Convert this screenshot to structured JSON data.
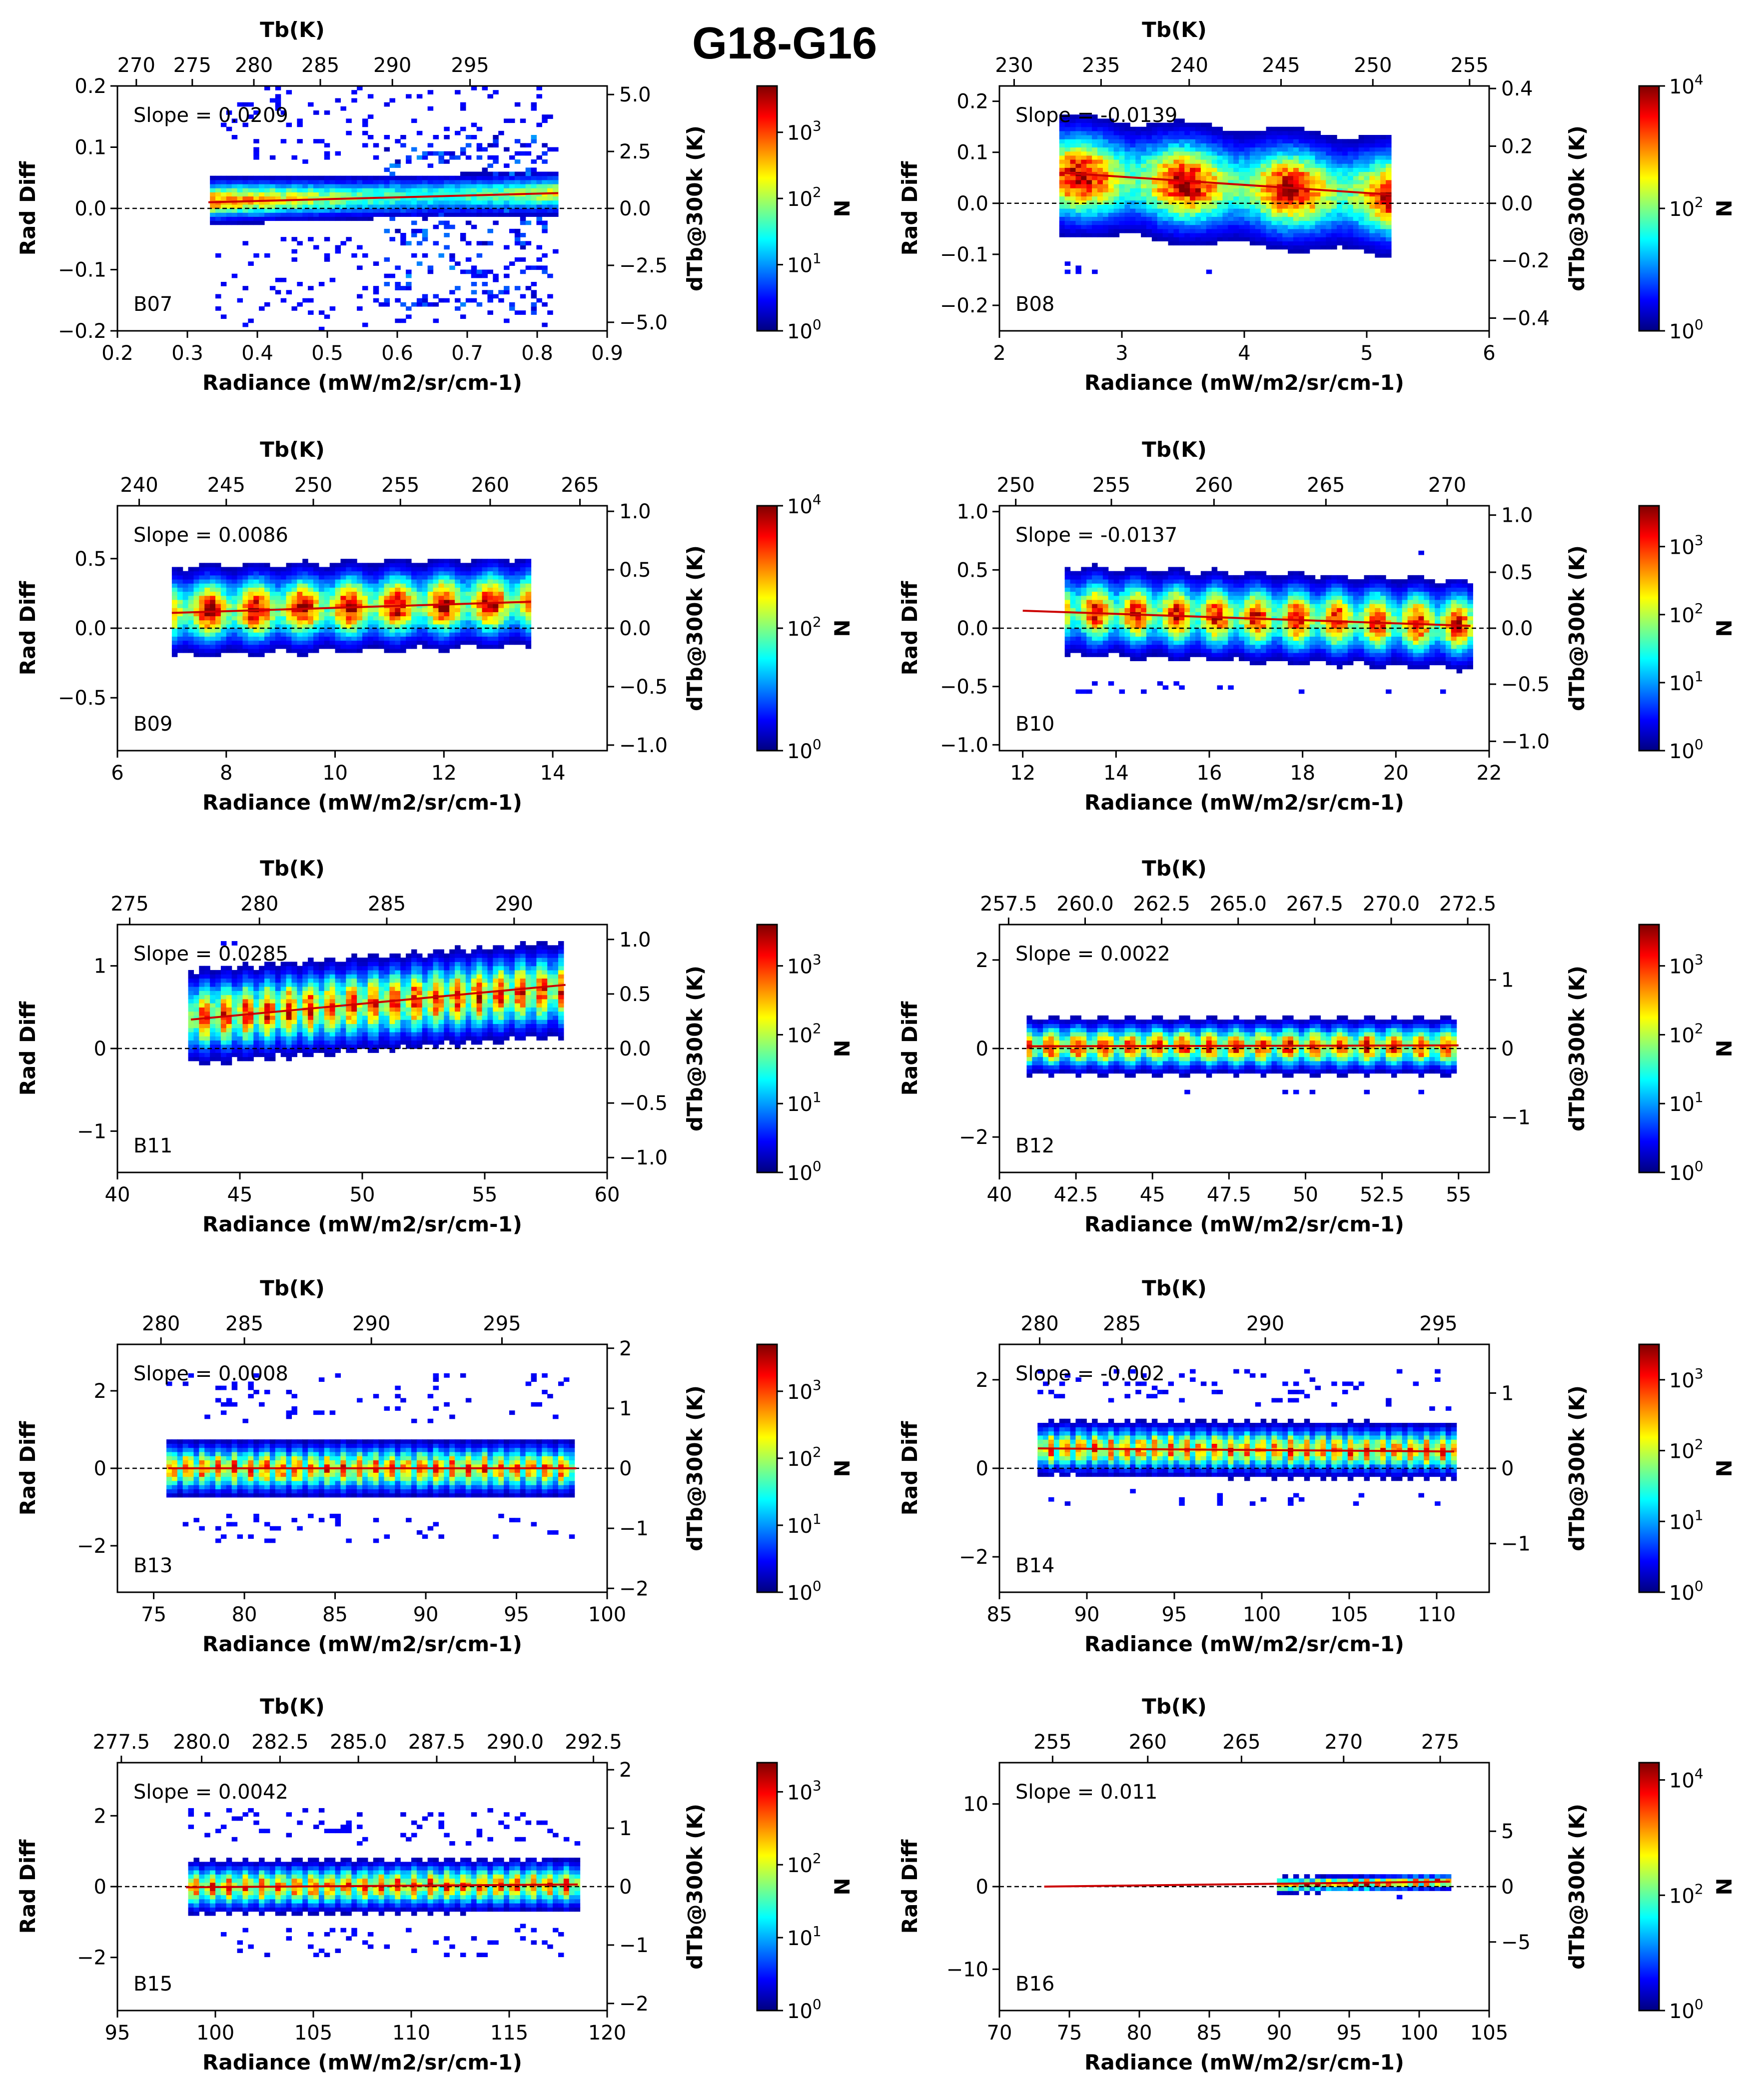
{
  "figure_title": "G18-G16",
  "colormap": [
    "#00007f",
    "#0000ff",
    "#0080ff",
    "#00ffff",
    "#80ff80",
    "#ffff00",
    "#ff8000",
    "#ff0000",
    "#7f0000"
  ],
  "fit_line_color": "#cc0000",
  "chart_data": [
    {
      "type": "heatmap",
      "band": "B07",
      "slope_text": "Slope = 0.0209",
      "title": "",
      "xlabel": "Radiance (mW/m2/sr/cm-1)",
      "ylabel": "Rad Diff",
      "top_xlabel": "Tb(K)",
      "right_ylabel": "dTb@300k (K)",
      "colorbar_label": "N",
      "xlim": [
        0.2,
        0.9
      ],
      "ylim": [
        -0.2,
        0.2
      ],
      "xticks": [
        0.2,
        0.3,
        0.4,
        0.5,
        0.6,
        0.7,
        0.8,
        0.9
      ],
      "yticks": [
        -0.2,
        -0.1,
        0.0,
        0.1,
        0.2
      ],
      "top_ticks": [
        {
          "label": "270",
          "x": 0.227
        },
        {
          "label": "275",
          "x": 0.307
        },
        {
          "label": "280",
          "x": 0.395
        },
        {
          "label": "285",
          "x": 0.49
        },
        {
          "label": "290",
          "x": 0.593
        },
        {
          "label": "295",
          "x": 0.704
        }
      ],
      "right_ticks": [
        {
          "label": "−5.0",
          "y": -0.186
        },
        {
          "label": "−2.5",
          "y": -0.093
        },
        {
          "label": "0.0",
          "y": 0.0
        },
        {
          "label": "2.5",
          "y": 0.093
        },
        {
          "label": "5.0",
          "y": 0.186
        }
      ],
      "colorbar_ticks": [
        "10^0",
        "10^1",
        "10^2",
        "10^3"
      ],
      "colorbar_max_exp": 3.7,
      "data_x": [
        0.33,
        0.83
      ],
      "data_y": [
        -0.2,
        0.2
      ],
      "center_y": [
        0.013,
        0.025
      ],
      "spread": 0.03,
      "center_density": 0.85,
      "fit_line": [
        [
          0.33,
          0.01
        ],
        [
          0.83,
          0.025
        ]
      ],
      "extra_regions": [
        {
          "x": [
            0.58,
            0.82
          ],
          "y": [
            -0.17,
            0.12
          ],
          "density": 0.25
        }
      ]
    },
    {
      "type": "heatmap",
      "band": "B08",
      "slope_text": "Slope = -0.0139",
      "title": "",
      "xlabel": "Radiance (mW/m2/sr/cm-1)",
      "ylabel": "Rad Diff",
      "top_xlabel": "Tb(K)",
      "right_ylabel": "dTb@300k (K)",
      "colorbar_label": "N",
      "xlim": [
        2,
        6
      ],
      "ylim": [
        -0.25,
        0.23
      ],
      "xticks": [
        2,
        3,
        4,
        5,
        6
      ],
      "yticks": [
        -0.2,
        -0.1,
        0.0,
        0.1,
        0.2
      ],
      "top_ticks": [
        {
          "label": "230",
          "x": 2.12
        },
        {
          "label": "235",
          "x": 2.83
        },
        {
          "label": "240",
          "x": 3.55
        },
        {
          "label": "245",
          "x": 4.3
        },
        {
          "label": "250",
          "x": 5.05
        },
        {
          "label": "255",
          "x": 5.84
        }
      ],
      "right_ticks": [
        {
          "label": "−0.4",
          "y": -0.225
        },
        {
          "label": "−0.2",
          "y": -0.112
        },
        {
          "label": "0.0",
          "y": 0.0
        },
        {
          "label": "0.2",
          "y": 0.112
        },
        {
          "label": "0.4",
          "y": 0.225
        }
      ],
      "colorbar_ticks": [
        "10^0",
        "10^2",
        "10^4"
      ],
      "colorbar_max_exp": 4,
      "data_x": [
        2.5,
        5.2
      ],
      "data_y": [
        -0.14,
        0.17
      ],
      "center_y": [
        0.055,
        0.015
      ],
      "spread": 0.09,
      "center_density": 0.95,
      "fit_line": [
        [
          2.5,
          0.06
        ],
        [
          5.2,
          0.017
        ]
      ],
      "extra_regions": []
    },
    {
      "type": "heatmap",
      "band": "B09",
      "slope_text": "Slope = 0.0086",
      "title": "",
      "xlabel": "Radiance (mW/m2/sr/cm-1)",
      "ylabel": "Rad Diff",
      "top_xlabel": "Tb(K)",
      "right_ylabel": "dTb@300k (K)",
      "colorbar_label": "N",
      "xlim": [
        6,
        15
      ],
      "ylim": [
        -0.88,
        0.88
      ],
      "xticks": [
        6,
        8,
        10,
        12,
        14
      ],
      "yticks": [
        -0.5,
        0.0,
        0.5
      ],
      "top_ticks": [
        {
          "label": "240",
          "x": 6.4
        },
        {
          "label": "245",
          "x": 8.0
        },
        {
          "label": "250",
          "x": 9.6
        },
        {
          "label": "255",
          "x": 11.2
        },
        {
          "label": "260",
          "x": 12.85
        },
        {
          "label": "265",
          "x": 14.5
        }
      ],
      "right_ticks": [
        {
          "label": "−1.0",
          "y": -0.84
        },
        {
          "label": "−0.5",
          "y": -0.42
        },
        {
          "label": "0.0",
          "y": 0.0
        },
        {
          "label": "0.5",
          "y": 0.42
        },
        {
          "label": "1.0",
          "y": 0.84
        }
      ],
      "colorbar_ticks": [
        "10^0",
        "10^2",
        "10^4"
      ],
      "colorbar_max_exp": 4,
      "data_x": [
        7.0,
        13.6
      ],
      "data_y": [
        -0.25,
        0.5
      ],
      "center_y": [
        0.12,
        0.19
      ],
      "spread": 0.25,
      "center_density": 0.95,
      "fit_line": [
        [
          7.0,
          0.11
        ],
        [
          13.6,
          0.19
        ]
      ],
      "extra_regions": []
    },
    {
      "type": "heatmap",
      "band": "B10",
      "slope_text": "Slope = -0.0137",
      "title": "",
      "xlabel": "Radiance (mW/m2/sr/cm-1)",
      "ylabel": "Rad Diff",
      "top_xlabel": "Tb(K)",
      "right_ylabel": "dTb@300k (K)",
      "colorbar_label": "N",
      "xlim": [
        11.5,
        22
      ],
      "ylim": [
        -1.05,
        1.05
      ],
      "xticks": [
        12,
        14,
        16,
        18,
        20,
        22
      ],
      "yticks": [
        -1.0,
        -0.5,
        0.0,
        0.5,
        1.0
      ],
      "top_ticks": [
        {
          "label": "250",
          "x": 11.85
        },
        {
          "label": "255",
          "x": 13.9
        },
        {
          "label": "260",
          "x": 16.1
        },
        {
          "label": "265",
          "x": 18.5
        },
        {
          "label": "270",
          "x": 21.1
        }
      ],
      "right_ticks": [
        {
          "label": "−1.0",
          "y": -0.97
        },
        {
          "label": "−0.5",
          "y": -0.48
        },
        {
          "label": "0.0",
          "y": 0.0
        },
        {
          "label": "0.5",
          "y": 0.48
        },
        {
          "label": "1.0",
          "y": 0.97
        }
      ],
      "colorbar_ticks": [
        "10^0",
        "10^1",
        "10^2",
        "10^3"
      ],
      "colorbar_max_exp": 3.6,
      "data_x": [
        12.9,
        21.6
      ],
      "data_y": [
        -0.55,
        0.65
      ],
      "center_y": [
        0.15,
        0.03
      ],
      "spread": 0.3,
      "center_density": 0.9,
      "fit_line": [
        [
          12.0,
          0.15
        ],
        [
          21.6,
          0.02
        ]
      ],
      "extra_regions": []
    },
    {
      "type": "heatmap",
      "band": "B11",
      "slope_text": "Slope = 0.0285",
      "title": "",
      "xlabel": "Radiance (mW/m2/sr/cm-1)",
      "ylabel": "Rad Diff",
      "top_xlabel": "Tb(K)",
      "right_ylabel": "dTb@300k (K)",
      "colorbar_label": "N",
      "xlim": [
        40,
        60
      ],
      "ylim": [
        -1.5,
        1.5
      ],
      "xticks": [
        40,
        45,
        50,
        55,
        60
      ],
      "yticks": [
        -1,
        0,
        1
      ],
      "top_ticks": [
        {
          "label": "275",
          "x": 40.5
        },
        {
          "label": "280",
          "x": 45.8
        },
        {
          "label": "285",
          "x": 51.0
        },
        {
          "label": "290",
          "x": 56.2
        }
      ],
      "right_ticks": [
        {
          "label": "−1.0",
          "y": -1.32
        },
        {
          "label": "−0.5",
          "y": -0.66
        },
        {
          "label": "0.0",
          "y": 0.0
        },
        {
          "label": "0.5",
          "y": 0.66
        },
        {
          "label": "1.0",
          "y": 1.32
        }
      ],
      "colorbar_ticks": [
        "10^0",
        "10^1",
        "10^2",
        "10^3"
      ],
      "colorbar_max_exp": 3.6,
      "data_x": [
        43.0,
        58.3
      ],
      "data_y": [
        -0.2,
        1.35
      ],
      "center_y": [
        0.38,
        0.72
      ],
      "spread": 0.45,
      "center_density": 0.9,
      "fit_line": [
        [
          43.0,
          0.35
        ],
        [
          58.3,
          0.77
        ]
      ],
      "extra_regions": []
    },
    {
      "type": "heatmap",
      "band": "B12",
      "slope_text": "Slope = 0.0022",
      "title": "",
      "xlabel": "Radiance (mW/m2/sr/cm-1)",
      "ylabel": "Rad Diff",
      "top_xlabel": "Tb(K)",
      "right_ylabel": "dTb@300k (K)",
      "colorbar_label": "N",
      "xlim": [
        40,
        56
      ],
      "ylim": [
        -2.8,
        2.8
      ],
      "xticks": [
        40.0,
        42.5,
        45.0,
        47.5,
        50.0,
        52.5,
        55.0
      ],
      "yticks": [
        -2,
        0,
        2
      ],
      "top_ticks": [
        {
          "label": "257.5",
          "x": 40.3
        },
        {
          "label": "260.0",
          "x": 42.8
        },
        {
          "label": "262.5",
          "x": 45.3
        },
        {
          "label": "265.0",
          "x": 47.8
        },
        {
          "label": "267.5",
          "x": 50.3
        },
        {
          "label": "270.0",
          "x": 52.8
        },
        {
          "label": "272.5",
          "x": 55.3
        }
      ],
      "right_ticks": [
        {
          "label": "−1",
          "y": -1.55
        },
        {
          "label": "0",
          "y": 0.0
        },
        {
          "label": "1",
          "y": 1.55
        }
      ],
      "colorbar_ticks": [
        "10^0",
        "10^1",
        "10^2",
        "10^3"
      ],
      "colorbar_max_exp": 3.6,
      "data_x": [
        40.9,
        55.0
      ],
      "data_y": [
        -1.0,
        1.0
      ],
      "center_y": [
        0.05,
        0.05
      ],
      "spread": 0.5,
      "center_density": 0.9,
      "fit_line": [
        [
          40.9,
          0.05
        ],
        [
          55.0,
          0.07
        ]
      ],
      "extra_regions": []
    },
    {
      "type": "heatmap",
      "band": "B13",
      "slope_text": "Slope = 0.0008",
      "title": "",
      "xlabel": "Radiance (mW/m2/sr/cm-1)",
      "ylabel": "Rad Diff",
      "top_xlabel": "Tb(K)",
      "right_ylabel": "dTb@300k (K)",
      "colorbar_label": "N",
      "xlim": [
        73,
        100
      ],
      "ylim": [
        -3.2,
        3.2
      ],
      "xticks": [
        75,
        80,
        85,
        90,
        95,
        100
      ],
      "yticks": [
        -2,
        0,
        2
      ],
      "top_ticks": [
        {
          "label": "280",
          "x": 75.4
        },
        {
          "label": "285",
          "x": 80.0
        },
        {
          "label": "290",
          "x": 87.0
        },
        {
          "label": "295",
          "x": 94.2
        }
      ],
      "right_ticks": [
        {
          "label": "−2",
          "y": -3.1
        },
        {
          "label": "−1",
          "y": -1.55
        },
        {
          "label": "0",
          "y": 0.0
        },
        {
          "label": "1",
          "y": 1.55
        },
        {
          "label": "2",
          "y": 3.1
        }
      ],
      "colorbar_ticks": [
        "10^0",
        "10^1",
        "10^2",
        "10^3"
      ],
      "colorbar_max_exp": 3.7,
      "data_x": [
        75.8,
        98.3
      ],
      "data_y": [
        -1.9,
        2.5
      ],
      "center_y": [
        0.0,
        0.0
      ],
      "spread": 0.6,
      "center_density": 0.85,
      "fit_line": [
        [
          75.8,
          0.0
        ],
        [
          98.3,
          0.0
        ]
      ],
      "extra_regions": []
    },
    {
      "type": "heatmap",
      "band": "B14",
      "slope_text": "Slope = -0.002",
      "title": "",
      "xlabel": "Radiance (mW/m2/sr/cm-1)",
      "ylabel": "Rad Diff",
      "top_xlabel": "Tb(K)",
      "right_ylabel": "dTb@300k (K)",
      "colorbar_label": "N",
      "xlim": [
        85,
        113
      ],
      "ylim": [
        -2.8,
        2.8
      ],
      "xticks": [
        85,
        90,
        95,
        100,
        105,
        110
      ],
      "yticks": [
        -2,
        0,
        2
      ],
      "top_ticks": [
        {
          "label": "280",
          "x": 87.3
        },
        {
          "label": "285",
          "x": 92.0
        },
        {
          "label": "290",
          "x": 100.2
        },
        {
          "label": "295",
          "x": 110.1
        }
      ],
      "right_ticks": [
        {
          "label": "−1",
          "y": -1.7
        },
        {
          "label": "0",
          "y": 0.0
        },
        {
          "label": "1",
          "y": 1.7
        }
      ],
      "colorbar_ticks": [
        "10^0",
        "10^1",
        "10^2",
        "10^3"
      ],
      "colorbar_max_exp": 3.5,
      "data_x": [
        87.2,
        111.0
      ],
      "data_y": [
        -0.8,
        2.2
      ],
      "center_y": [
        0.45,
        0.4
      ],
      "spread": 0.5,
      "center_density": 0.85,
      "fit_line": [
        [
          87.2,
          0.45
        ],
        [
          111.0,
          0.38
        ]
      ],
      "extra_regions": []
    },
    {
      "type": "heatmap",
      "band": "B15",
      "slope_text": "Slope = 0.0042",
      "title": "",
      "xlabel": "Radiance (mW/m2/sr/cm-1)",
      "ylabel": "Rad Diff",
      "top_xlabel": "Tb(K)",
      "right_ylabel": "dTb@300k (K)",
      "colorbar_label": "N",
      "xlim": [
        95,
        120
      ],
      "ylim": [
        -3.5,
        3.5
      ],
      "xticks": [
        95,
        100,
        105,
        110,
        115,
        120
      ],
      "yticks": [
        -2,
        0,
        2
      ],
      "top_ticks": [
        {
          "label": "277.5",
          "x": 95.2
        },
        {
          "label": "280.0",
          "x": 99.3
        },
        {
          "label": "282.5",
          "x": 103.3
        },
        {
          "label": "285.0",
          "x": 107.3
        },
        {
          "label": "287.5",
          "x": 111.3
        },
        {
          "label": "290.0",
          "x": 115.3
        },
        {
          "label": "292.5",
          "x": 119.3
        }
      ],
      "right_ticks": [
        {
          "label": "−2",
          "y": -3.3
        },
        {
          "label": "−1",
          "y": -1.65
        },
        {
          "label": "0",
          "y": 0.0
        },
        {
          "label": "1",
          "y": 1.65
        },
        {
          "label": "2",
          "y": 3.3
        }
      ],
      "colorbar_ticks": [
        "10^0",
        "10^1",
        "10^2",
        "10^3"
      ],
      "colorbar_max_exp": 3.4,
      "data_x": [
        98.5,
        118.5
      ],
      "data_y": [
        -2.0,
        2.2
      ],
      "center_y": [
        -0.02,
        0.05
      ],
      "spread": 0.6,
      "center_density": 0.85,
      "fit_line": [
        [
          98.5,
          -0.02
        ],
        [
          118.5,
          0.06
        ]
      ],
      "extra_regions": []
    },
    {
      "type": "heatmap",
      "band": "B16",
      "slope_text": "Slope = 0.011",
      "title": "",
      "xlabel": "Radiance (mW/m2/sr/cm-1)",
      "ylabel": "Rad Diff",
      "top_xlabel": "Tb(K)",
      "right_ylabel": "dTb@300k (K)",
      "colorbar_label": "N",
      "xlim": [
        70,
        105
      ],
      "ylim": [
        -15,
        15
      ],
      "xticks": [
        70,
        75,
        80,
        85,
        90,
        95,
        100,
        105
      ],
      "yticks": [
        -10,
        0,
        10
      ],
      "top_ticks": [
        {
          "label": "255",
          "x": 73.8
        },
        {
          "label": "260",
          "x": 80.6
        },
        {
          "label": "265",
          "x": 87.3
        },
        {
          "label": "270",
          "x": 94.6
        },
        {
          "label": "275",
          "x": 101.5
        }
      ],
      "right_ticks": [
        {
          "label": "−5",
          "y": -6.7
        },
        {
          "label": "0",
          "y": 0.0
        },
        {
          "label": "5",
          "y": 6.7
        }
      ],
      "colorbar_ticks": [
        "10^0",
        "10^2",
        "10^4"
      ],
      "colorbar_max_exp": 4.3,
      "data_x": [
        90,
        102.2
      ],
      "data_y": [
        -1.6,
        1.6
      ],
      "center_y": [
        0.2,
        0.6
      ],
      "spread": 0.8,
      "center_density": 0.95,
      "fit_line": [
        [
          73.2,
          0.0
        ],
        [
          102.2,
          0.6
        ]
      ],
      "extra_regions": []
    }
  ]
}
